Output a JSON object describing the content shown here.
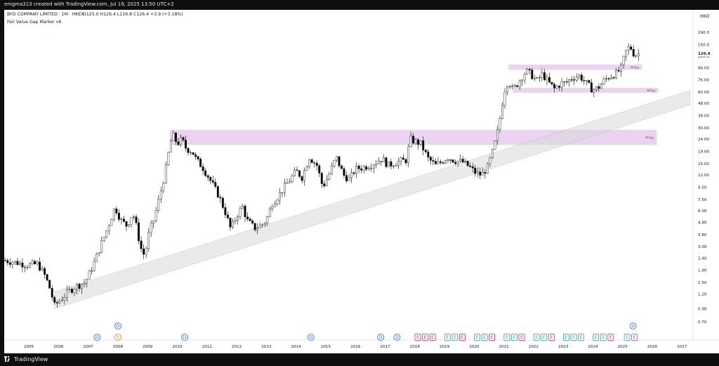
{
  "header": {
    "author_line": "enigma313 created with TradingView.com, Jul 19, 2025 13:50 UTC+2"
  },
  "footer": {
    "brand": "TradingView"
  },
  "chart_data": {
    "type": "candlestick",
    "title": "BYD COMPANY LIMITED · 1M · HKEX",
    "ohlc_label": "O125.0 H126.4 L116.8 C126.4 +3.9 (+3.18%)",
    "indicator": "Fair Value Gap Marker v6",
    "currency": "HKD",
    "scale": "log",
    "y_ticks": [
      "190.0",
      "150.0",
      "120.0",
      "96.00",
      "76.00",
      "60.00",
      "48.00",
      "38.00",
      "30.00",
      "24.00",
      "19.00",
      "15.00",
      "12.00",
      "9.50",
      "7.50",
      "6.00",
      "4.80",
      "3.80",
      "3.00",
      "2.40",
      "1.90",
      "1.50",
      "1.20",
      "0.90",
      "0.70"
    ],
    "y_tick_values": [
      190,
      150,
      120,
      96,
      76,
      60,
      48,
      38,
      30,
      24,
      19,
      15,
      12,
      9.5,
      7.5,
      6,
      4.8,
      3.8,
      3,
      2.4,
      1.9,
      1.5,
      1.2,
      0.9,
      0.7
    ],
    "ylim": [
      0.58,
      230
    ],
    "last_price": "126.4",
    "x_ticks": [
      "2005",
      "2006",
      "2007",
      "2008",
      "2009",
      "2010",
      "2011",
      "2012",
      "2013",
      "2014",
      "2015",
      "2016",
      "2017",
      "2018",
      "2019",
      "2020",
      "2021",
      "2022",
      "2023",
      "2024",
      "2025",
      "2026",
      "2027"
    ],
    "x_tick_values": [
      2005,
      2006,
      2007,
      2008,
      2009,
      2010,
      2011,
      2012,
      2013,
      2014,
      2015,
      2016,
      2017,
      2018,
      2019,
      2020,
      2021,
      2022,
      2023,
      2024,
      2025,
      2026,
      2027
    ],
    "xlim": [
      2004.17,
      2027.3
    ],
    "grid": false,
    "closes": [
      [
        2004.2,
        2.3
      ],
      [
        2004.6,
        2.2
      ],
      [
        2005.0,
        2.1
      ],
      [
        2005.3,
        2.15
      ],
      [
        2005.55,
        1.7
      ],
      [
        2005.75,
        1.25
      ],
      [
        2005.85,
        0.95
      ],
      [
        2006.1,
        1.1
      ],
      [
        2006.4,
        1.3
      ],
      [
        2006.6,
        1.4
      ],
      [
        2006.9,
        1.5
      ],
      [
        2007.2,
        2.2
      ],
      [
        2007.4,
        3.0
      ],
      [
        2007.6,
        4.0
      ],
      [
        2007.8,
        5.5
      ],
      [
        2007.9,
        6.5
      ],
      [
        2008.1,
        5.0
      ],
      [
        2008.3,
        4.5
      ],
      [
        2008.5,
        5.8
      ],
      [
        2008.65,
        4.2
      ],
      [
        2008.75,
        3.0
      ],
      [
        2008.9,
        2.5
      ],
      [
        2009.05,
        4.0
      ],
      [
        2009.2,
        5.0
      ],
      [
        2009.35,
        7.0
      ],
      [
        2009.5,
        10.0
      ],
      [
        2009.65,
        15.0
      ],
      [
        2009.75,
        22.0
      ],
      [
        2009.85,
        26.0
      ],
      [
        2010.0,
        22.0
      ],
      [
        2010.15,
        24.0
      ],
      [
        2010.3,
        20.0
      ],
      [
        2010.5,
        19.0
      ],
      [
        2010.65,
        16.0
      ],
      [
        2010.85,
        14.0
      ],
      [
        2011.1,
        11.0
      ],
      [
        2011.4,
        8.0
      ],
      [
        2011.6,
        6.0
      ],
      [
        2011.8,
        4.2
      ],
      [
        2012.0,
        5.5
      ],
      [
        2012.2,
        6.5
      ],
      [
        2012.35,
        5.0
      ],
      [
        2012.6,
        4.3
      ],
      [
        2012.8,
        4.5
      ],
      [
        2013.0,
        5.0
      ],
      [
        2013.2,
        7.0
      ],
      [
        2013.4,
        8.0
      ],
      [
        2013.6,
        9.5
      ],
      [
        2013.8,
        11.0
      ],
      [
        2014.0,
        13.0
      ],
      [
        2014.2,
        11.5
      ],
      [
        2014.45,
        17.0
      ],
      [
        2014.7,
        14.5
      ],
      [
        2014.9,
        9.5
      ],
      [
        2015.1,
        12.0
      ],
      [
        2015.35,
        17.0
      ],
      [
        2015.6,
        12.0
      ],
      [
        2015.8,
        11.0
      ],
      [
        2016.0,
        13.5
      ],
      [
        2016.3,
        14.0
      ],
      [
        2016.6,
        15.0
      ],
      [
        2016.9,
        16.5
      ],
      [
        2017.1,
        14.5
      ],
      [
        2017.4,
        15.5
      ],
      [
        2017.7,
        16.0
      ],
      [
        2017.85,
        24.0
      ],
      [
        2018.0,
        23.0
      ],
      [
        2018.2,
        22.0
      ],
      [
        2018.45,
        16.5
      ],
      [
        2018.7,
        14.5
      ],
      [
        2018.9,
        15.5
      ],
      [
        2019.1,
        17.0
      ],
      [
        2019.3,
        16.0
      ],
      [
        2019.6,
        15.5
      ],
      [
        2019.85,
        14.0
      ],
      [
        2020.05,
        12.5
      ],
      [
        2020.25,
        12.0
      ],
      [
        2020.45,
        14.0
      ],
      [
        2020.6,
        18.0
      ],
      [
        2020.75,
        25.0
      ],
      [
        2020.9,
        40.0
      ],
      [
        2021.0,
        60.0
      ],
      [
        2021.15,
        75.0
      ],
      [
        2021.3,
        62.0
      ],
      [
        2021.45,
        70.0
      ],
      [
        2021.6,
        80.0
      ],
      [
        2021.75,
        90.0
      ],
      [
        2021.9,
        85.0
      ],
      [
        2022.1,
        74.0
      ],
      [
        2022.3,
        85.0
      ],
      [
        2022.5,
        72.0
      ],
      [
        2022.7,
        64.0
      ],
      [
        2022.9,
        70.0
      ],
      [
        2023.1,
        72.0
      ],
      [
        2023.3,
        79.0
      ],
      [
        2023.55,
        82.0
      ],
      [
        2023.8,
        70.0
      ],
      [
        2024.0,
        62.0
      ],
      [
        2024.2,
        66.0
      ],
      [
        2024.4,
        76.0
      ],
      [
        2024.6,
        82.0
      ],
      [
        2024.8,
        86.0
      ],
      [
        2024.95,
        95.0
      ],
      [
        2025.1,
        130.0
      ],
      [
        2025.25,
        145.0
      ],
      [
        2025.4,
        122.0
      ],
      [
        2025.55,
        126.4
      ]
    ],
    "fvg_zones": [
      {
        "label": "M Key",
        "x_start": 2021.15,
        "x_end": 2025.65,
        "y_low": 92,
        "y_high": 102
      },
      {
        "label": "M Key",
        "x_start": 2021.3,
        "x_end": 2026.2,
        "y_low": 59,
        "y_high": 65
      },
      {
        "label": "M Key",
        "x_start": 2009.75,
        "x_end": 2026.15,
        "y_low": 21.5,
        "y_high": 28.8
      }
    ],
    "channel": {
      "x_start": 2005.85,
      "y_start": 0.9,
      "x_end": 2027.3,
      "y_end": 47,
      "upper_offset_factor": 1.32
    },
    "events": [
      {
        "year": 2007.3,
        "code": "D",
        "kind": "dividend"
      },
      {
        "year": 2008.0,
        "code": "D",
        "kind": "dividend",
        "stack": 1
      },
      {
        "year": 2008.0,
        "code": "S",
        "kind": "split"
      },
      {
        "year": 2010.25,
        "code": "D",
        "kind": "dividend"
      },
      {
        "year": 2014.5,
        "code": "D",
        "kind": "dividend"
      },
      {
        "year": 2016.85,
        "code": "D",
        "kind": "dividend"
      },
      {
        "year": 2017.4,
        "code": "D",
        "kind": "dividend"
      },
      {
        "year": 2018.1,
        "code": "E",
        "kind": "earnings-red"
      },
      {
        "year": 2018.35,
        "code": "E",
        "kind": "earnings-red"
      },
      {
        "year": 2018.6,
        "code": "E",
        "kind": "earnings-red"
      },
      {
        "year": 2019.1,
        "code": "E",
        "kind": "earnings-green"
      },
      {
        "year": 2019.35,
        "code": "E",
        "kind": "earnings-green"
      },
      {
        "year": 2019.6,
        "code": "E",
        "kind": "earnings-red"
      },
      {
        "year": 2020.1,
        "code": "E",
        "kind": "earnings-green"
      },
      {
        "year": 2020.35,
        "code": "E",
        "kind": "earnings-green"
      },
      {
        "year": 2020.6,
        "code": "E",
        "kind": "earnings-red"
      },
      {
        "year": 2021.1,
        "code": "E",
        "kind": "earnings-green"
      },
      {
        "year": 2021.35,
        "code": "E",
        "kind": "earnings-green"
      },
      {
        "year": 2021.6,
        "code": "E",
        "kind": "earnings-red"
      },
      {
        "year": 2022.1,
        "code": "E",
        "kind": "earnings-green"
      },
      {
        "year": 2022.35,
        "code": "E",
        "kind": "earnings-green"
      },
      {
        "year": 2022.6,
        "code": "E",
        "kind": "earnings-red"
      },
      {
        "year": 2023.1,
        "code": "E",
        "kind": "earnings-green"
      },
      {
        "year": 2023.35,
        "code": "E",
        "kind": "earnings-green"
      },
      {
        "year": 2023.6,
        "code": "E",
        "kind": "earnings-green"
      },
      {
        "year": 2024.1,
        "code": "E",
        "kind": "earnings-green"
      },
      {
        "year": 2024.35,
        "code": "E",
        "kind": "earnings-green"
      },
      {
        "year": 2024.6,
        "code": "E",
        "kind": "earnings-red"
      },
      {
        "year": 2025.15,
        "code": "E",
        "kind": "earnings-green"
      },
      {
        "year": 2025.35,
        "code": "D",
        "kind": "dividend",
        "stack": 1
      },
      {
        "year": 2025.4,
        "code": "E",
        "kind": "earnings-purple"
      }
    ],
    "colors": {
      "up": "#ffffff",
      "down": "#000000",
      "wick": "#000000",
      "fvg": "#ead4f2",
      "channel": "#d9d9d9",
      "dividend": "#2962ff",
      "split": "#f57f17",
      "earnings_red": "#e91e63",
      "earnings_green": "#26a69a",
      "earnings_purple": "#ab47bc"
    }
  }
}
